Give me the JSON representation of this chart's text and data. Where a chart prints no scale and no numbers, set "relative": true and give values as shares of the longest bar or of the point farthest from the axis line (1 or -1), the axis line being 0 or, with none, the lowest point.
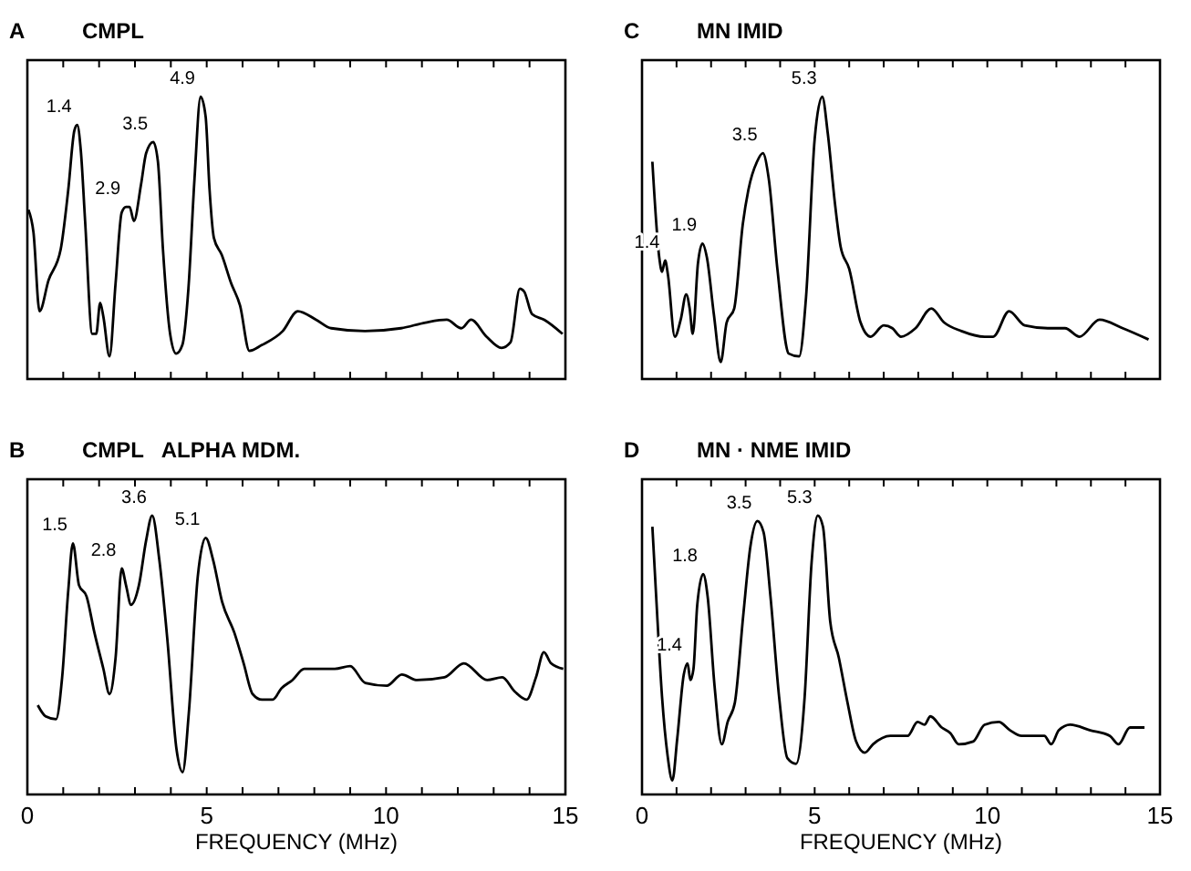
{
  "chart_data": [
    {
      "type": "line",
      "title": "A",
      "subtitle": "CMPL",
      "relative": true,
      "xlim": [
        0,
        15
      ],
      "xticks": [
        0,
        {
          "value": 1,
          "label": null
        },
        {
          "value": 2,
          "label": null
        },
        {
          "value": 3,
          "label": null
        },
        {
          "value": 4,
          "label": null
        },
        5,
        {
          "value": 6,
          "label": null
        },
        {
          "value": 7,
          "label": null
        },
        {
          "value": 8,
          "label": null
        },
        {
          "value": 9,
          "label": null
        },
        10,
        {
          "value": 11,
          "label": null
        },
        {
          "value": 12,
          "label": null
        },
        {
          "value": 13,
          "label": null
        },
        {
          "value": 14,
          "label": null
        },
        15
      ],
      "tick_labels": false,
      "x": [
        0.03,
        0.17,
        0.34,
        0.59,
        0.93,
        1.14,
        1.31,
        1.39,
        1.49,
        1.61,
        1.81,
        1.92,
        2.03,
        2.12,
        2.29,
        2.46,
        2.63,
        2.75,
        2.85,
        2.97,
        3.17,
        3.31,
        3.51,
        3.64,
        3.78,
        3.98,
        4.15,
        4.32,
        4.49,
        4.66,
        4.83,
        4.97,
        5.08,
        5.2,
        5.42,
        5.68,
        5.93,
        6.19,
        6.53,
        7.12,
        7.54,
        8.05,
        8.47,
        9.41,
        10.42,
        11.1,
        11.69,
        12.1,
        12.37,
        12.8,
        13.22,
        13.47,
        13.73,
        13.85,
        14.07,
        14.41,
        14.92
      ],
      "series": [
        {
          "color": "#000000",
          "values": [
            0.6,
            0.52,
            0.24,
            0.35,
            0.46,
            0.67,
            0.88,
            0.9,
            0.81,
            0.56,
            0.16,
            0.16,
            0.27,
            0.22,
            0.08,
            0.34,
            0.59,
            0.61,
            0.61,
            0.56,
            0.69,
            0.8,
            0.84,
            0.77,
            0.46,
            0.16,
            0.09,
            0.12,
            0.32,
            0.71,
            1.0,
            0.93,
            0.67,
            0.5,
            0.44,
            0.34,
            0.26,
            0.1,
            0.12,
            0.17,
            0.24,
            0.21,
            0.18,
            0.17,
            0.18,
            0.2,
            0.21,
            0.18,
            0.21,
            0.15,
            0.11,
            0.13,
            0.32,
            0.31,
            0.23,
            0.21,
            0.16
          ]
        }
      ],
      "annotations": [
        {
          "text": "1.4",
          "x": 1.39,
          "y": 0.9
        },
        {
          "text": "2.9",
          "x": 2.75,
          "y": 0.61
        },
        {
          "text": "3.5",
          "x": 3.51,
          "y": 0.84
        },
        {
          "text": "4.9",
          "x": 4.83,
          "y": 1.0
        }
      ]
    },
    {
      "type": "line",
      "title": "C",
      "subtitle": "MN IMID",
      "relative": true,
      "xlim": [
        0,
        15
      ],
      "xticks": [
        0,
        {
          "value": 1,
          "label": null
        },
        {
          "value": 2,
          "label": null
        },
        {
          "value": 3,
          "label": null
        },
        {
          "value": 4,
          "label": null
        },
        5,
        {
          "value": 6,
          "label": null
        },
        {
          "value": 7,
          "label": null
        },
        {
          "value": 8,
          "label": null
        },
        {
          "value": 9,
          "label": null
        },
        10,
        {
          "value": 11,
          "label": null
        },
        {
          "value": 12,
          "label": null
        },
        {
          "value": 13,
          "label": null
        },
        {
          "value": 14,
          "label": null
        },
        15
      ],
      "tick_labels": false,
      "x": [
        0.3,
        0.5,
        0.58,
        0.67,
        0.75,
        0.95,
        1.12,
        1.28,
        1.38,
        1.47,
        1.62,
        1.75,
        1.88,
        2.08,
        2.28,
        2.45,
        2.67,
        2.92,
        3.08,
        3.33,
        3.5,
        3.67,
        3.92,
        4.25,
        4.55,
        4.75,
        5.0,
        5.22,
        5.38,
        5.58,
        5.75,
        6.0,
        6.33,
        6.62,
        7.0,
        7.25,
        7.5,
        7.92,
        8.38,
        8.75,
        9.25,
        9.92,
        10.17,
        10.63,
        11.08,
        11.75,
        12.25,
        12.67,
        13.25,
        13.92,
        14.67
      ],
      "series": [
        {
          "color": "#000000",
          "values": [
            0.77,
            0.43,
            0.38,
            0.42,
            0.37,
            0.15,
            0.21,
            0.3,
            0.25,
            0.16,
            0.41,
            0.48,
            0.43,
            0.23,
            0.06,
            0.2,
            0.25,
            0.55,
            0.67,
            0.77,
            0.8,
            0.71,
            0.39,
            0.09,
            0.08,
            0.29,
            0.85,
            1.0,
            0.87,
            0.63,
            0.47,
            0.39,
            0.2,
            0.15,
            0.19,
            0.18,
            0.15,
            0.18,
            0.25,
            0.2,
            0.17,
            0.15,
            0.15,
            0.24,
            0.19,
            0.18,
            0.18,
            0.15,
            0.21,
            0.18,
            0.14
          ]
        }
      ],
      "annotations": [
        {
          "text": "1.4",
          "x": 0.67,
          "y": 0.42
        },
        {
          "text": "1.9",
          "x": 1.75,
          "y": 0.48
        },
        {
          "text": "3.5",
          "x": 3.5,
          "y": 0.8
        },
        {
          "text": "5.3",
          "x": 5.22,
          "y": 1.0
        }
      ]
    },
    {
      "type": "line",
      "title": "B",
      "subtitle": "CMPL   ALPHA MDM.",
      "relative": true,
      "xlabel": "FREQUENCY (MHz)",
      "xlim": [
        0,
        15
      ],
      "xticks": [
        0,
        {
          "value": 1,
          "label": null
        },
        {
          "value": 2,
          "label": null
        },
        {
          "value": 3,
          "label": null
        },
        {
          "value": 4,
          "label": null
        },
        5,
        {
          "value": 6,
          "label": null
        },
        {
          "value": 7,
          "label": null
        },
        {
          "value": 8,
          "label": null
        },
        {
          "value": 9,
          "label": null
        },
        10,
        {
          "value": 11,
          "label": null
        },
        {
          "value": 12,
          "label": null
        },
        {
          "value": 13,
          "label": null
        },
        {
          "value": 14,
          "label": null
        },
        15
      ],
      "tick_labels": "x",
      "x": [
        0.29,
        0.51,
        0.8,
        0.97,
        1.14,
        1.27,
        1.44,
        1.65,
        1.87,
        2.12,
        2.29,
        2.46,
        2.63,
        2.75,
        2.89,
        3.11,
        3.31,
        3.48,
        3.68,
        3.9,
        4.16,
        4.33,
        4.5,
        4.75,
        4.97,
        5.18,
        5.43,
        5.77,
        6.03,
        6.28,
        6.54,
        6.84,
        7.08,
        7.39,
        7.72,
        8.57,
        9.0,
        9.42,
        10.02,
        10.44,
        10.87,
        11.63,
        12.17,
        12.82,
        13.24,
        13.58,
        13.92,
        14.18,
        14.4,
        14.6,
        14.94
      ],
      "series": [
        {
          "color": "#000000",
          "values": [
            0.32,
            0.28,
            0.27,
            0.42,
            0.73,
            0.9,
            0.75,
            0.71,
            0.58,
            0.45,
            0.36,
            0.49,
            0.81,
            0.75,
            0.68,
            0.75,
            0.91,
            1.0,
            0.84,
            0.56,
            0.16,
            0.08,
            0.29,
            0.78,
            0.92,
            0.84,
            0.69,
            0.58,
            0.47,
            0.36,
            0.34,
            0.34,
            0.38,
            0.41,
            0.45,
            0.45,
            0.46,
            0.4,
            0.39,
            0.43,
            0.41,
            0.42,
            0.47,
            0.41,
            0.42,
            0.37,
            0.34,
            0.42,
            0.51,
            0.47,
            0.45
          ]
        }
      ],
      "annotations": [
        {
          "text": "1.5",
          "x": 1.27,
          "y": 0.9
        },
        {
          "text": "2.8",
          "x": 2.63,
          "y": 0.81
        },
        {
          "text": "3.6",
          "x": 3.48,
          "y": 1.0
        },
        {
          "text": "5.1",
          "x": 4.97,
          "y": 0.92
        }
      ]
    },
    {
      "type": "line",
      "title": "D",
      "subtitle": "MN · NME IMID",
      "relative": true,
      "xlabel": "FREQUENCY (MHz)",
      "xlim": [
        0,
        15
      ],
      "xticks": [
        0,
        {
          "value": 1,
          "label": null
        },
        {
          "value": 2,
          "label": null
        },
        {
          "value": 3,
          "label": null
        },
        {
          "value": 4,
          "label": null
        },
        5,
        {
          "value": 6,
          "label": null
        },
        {
          "value": 7,
          "label": null
        },
        {
          "value": 8,
          "label": null
        },
        {
          "value": 9,
          "label": null
        },
        10,
        {
          "value": 11,
          "label": null
        },
        {
          "value": 12,
          "label": null
        },
        {
          "value": 13,
          "label": null
        },
        {
          "value": 14,
          "label": null
        },
        15
      ],
      "tick_labels": "x",
      "x": [
        0.3,
        0.41,
        0.58,
        0.74,
        0.88,
        1.02,
        1.21,
        1.32,
        1.4,
        1.49,
        1.6,
        1.77,
        1.9,
        2.1,
        2.31,
        2.48,
        2.69,
        2.93,
        3.14,
        3.34,
        3.52,
        3.72,
        3.97,
        4.21,
        4.46,
        4.71,
        4.91,
        5.09,
        5.24,
        5.45,
        5.7,
        5.95,
        6.2,
        6.45,
        6.69,
        7.19,
        7.69,
        7.98,
        8.18,
        8.35,
        8.68,
        8.93,
        9.17,
        9.59,
        9.92,
        10.33,
        10.66,
        10.99,
        11.65,
        11.85,
        12.07,
        12.4,
        12.98,
        13.55,
        13.8,
        14.13,
        14.55
      ],
      "series": [
        {
          "color": "#000000",
          "values": [
            0.96,
            0.71,
            0.35,
            0.14,
            0.05,
            0.2,
            0.43,
            0.47,
            0.41,
            0.45,
            0.68,
            0.79,
            0.71,
            0.39,
            0.18,
            0.26,
            0.33,
            0.64,
            0.89,
            0.98,
            0.94,
            0.71,
            0.35,
            0.13,
            0.11,
            0.35,
            0.83,
            1.0,
            0.96,
            0.62,
            0.49,
            0.33,
            0.19,
            0.15,
            0.18,
            0.21,
            0.21,
            0.26,
            0.25,
            0.28,
            0.24,
            0.22,
            0.18,
            0.19,
            0.25,
            0.26,
            0.23,
            0.21,
            0.21,
            0.18,
            0.23,
            0.25,
            0.23,
            0.21,
            0.18,
            0.24,
            0.24
          ]
        }
      ],
      "annotations": [
        {
          "text": "1.4",
          "x": 1.32,
          "y": 0.47
        },
        {
          "text": "1.8",
          "x": 1.77,
          "y": 0.79
        },
        {
          "text": "3.5",
          "x": 3.34,
          "y": 0.98
        },
        {
          "text": "5.3",
          "x": 5.09,
          "y": 1.0
        }
      ]
    }
  ]
}
